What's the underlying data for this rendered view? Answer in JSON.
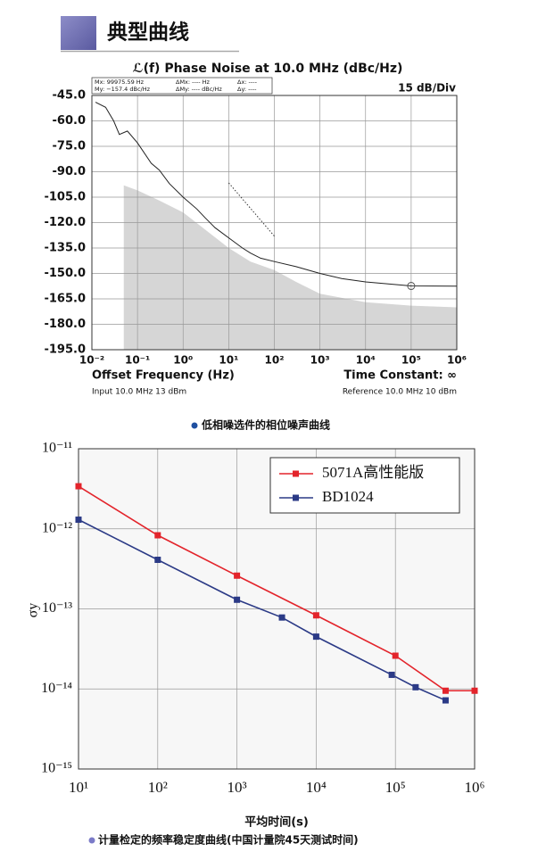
{
  "header": {
    "title": "典型曲线"
  },
  "chart_data": [
    {
      "type": "line",
      "title": "ℒ(f) Phase Noise at 10.0 MHz (dBc/Hz)",
      "annotations": [
        "Mx: 99975.59 Hz",
        "ΔMx: ---- Hz",
        "Δx: ----",
        "My: −157.4 dBc/Hz",
        "ΔMy: ---- dBc/Hz",
        "Δy: ----"
      ],
      "scale_note": "15 dB/Div",
      "x_label": "Offset Frequency (Hz)",
      "time_constant": "Time Constant: ∞",
      "input_note": "Input 10.0 MHz 13 dBm",
      "reference_note": "Reference 10.0 MHz 10 dBm",
      "caption": "低相噪选件的相位噪声曲线",
      "x_log": true,
      "grid": true,
      "xlim": [
        0.01,
        1000000
      ],
      "xticks": [
        {
          "value": 0.01,
          "label": "10⁻²"
        },
        {
          "value": 0.1,
          "label": "10⁻¹"
        },
        {
          "value": 1,
          "label": "10⁰"
        },
        {
          "value": 10,
          "label": "10¹"
        },
        {
          "value": 100,
          "label": "10²"
        },
        {
          "value": 1000,
          "label": "10³"
        },
        {
          "value": 10000,
          "label": "10⁴"
        },
        {
          "value": 100000,
          "label": "10⁵"
        },
        {
          "value": 1000000,
          "label": "10⁶"
        }
      ],
      "ylim": [
        -195,
        -45
      ],
      "yticks": [
        {
          "value": -45,
          "label": "-45.0"
        },
        {
          "value": -60,
          "label": "-60.0"
        },
        {
          "value": -75,
          "label": "-75.0"
        },
        {
          "value": -90,
          "label": "-90.0"
        },
        {
          "value": -105,
          "label": "-105.0"
        },
        {
          "value": -120,
          "label": "-120.0"
        },
        {
          "value": -135,
          "label": "-135.0"
        },
        {
          "value": -150,
          "label": "-150.0"
        },
        {
          "value": -165,
          "label": "-165.0"
        },
        {
          "value": -180,
          "label": "-180.0"
        },
        {
          "value": -195,
          "label": "-195.0"
        }
      ],
      "marker": {
        "x": 99975.59,
        "y": -157.4
      },
      "series": [
        {
          "style": "area",
          "color": "#d6d6d6",
          "x": [
            0.05,
            0.1,
            0.3,
            1,
            3,
            10,
            30,
            100,
            300,
            1000,
            10000,
            100000,
            1000000
          ],
          "values": [
            -98,
            -101,
            -107,
            -114,
            -124,
            -135,
            -143,
            -148,
            -155,
            -162,
            -167,
            -169,
            -170
          ]
        },
        {
          "style": "line",
          "color": "#222",
          "x": [
            0.012,
            0.02,
            0.03,
            0.04,
            0.06,
            0.1,
            0.2,
            0.3,
            0.5,
            1,
            2,
            3,
            5,
            10,
            20,
            30,
            50,
            100,
            300,
            1000,
            3000,
            10000,
            100000,
            1000000
          ],
          "values": [
            -49,
            -52,
            -60,
            -68,
            -66,
            -73,
            -85,
            -89,
            -97,
            -105,
            -112,
            -117,
            -123,
            -129,
            -135,
            -138,
            -141,
            -143,
            -146,
            -150,
            -153,
            -155,
            -157.4,
            -157.5
          ]
        },
        {
          "style": "dotted",
          "color": "#333",
          "x": [
            10,
            100
          ],
          "values": [
            -96.6,
            -128
          ]
        }
      ]
    },
    {
      "type": "line",
      "y_label": "σy",
      "x_label": "平均时间(s)",
      "caption": "计量检定的频率稳定度曲线(中国计量院45天测试时间)",
      "x_log": true,
      "y_log": true,
      "grid": true,
      "legend": "upper right",
      "xlim": [
        10,
        1000000
      ],
      "xticks": [
        {
          "value": 10,
          "label": "10¹"
        },
        {
          "value": 100,
          "label": "10²"
        },
        {
          "value": 1000,
          "label": "10³"
        },
        {
          "value": 10000,
          "label": "10⁴"
        },
        {
          "value": 100000,
          "label": "10⁵"
        },
        {
          "value": 1000000,
          "label": "10⁶"
        }
      ],
      "ylim": [
        1e-15,
        1e-11
      ],
      "yticks": [
        {
          "value": 1e-11,
          "label": "10⁻¹¹"
        },
        {
          "value": 1e-12,
          "label": "10⁻¹²"
        },
        {
          "value": 1e-13,
          "label": "10⁻¹³"
        },
        {
          "value": 1e-14,
          "label": "10⁻¹⁴"
        },
        {
          "value": 1e-15,
          "label": "10⁻¹⁵"
        }
      ],
      "series": [
        {
          "name": "5071A高性能版",
          "color": "#e3242b",
          "x": [
            10,
            100,
            1000,
            10000,
            100000,
            430000,
            1000000
          ],
          "values": [
            3.4e-12,
            8.3e-13,
            2.6e-13,
            8.3e-14,
            2.6e-14,
            9.5e-15,
            9.5e-15
          ]
        },
        {
          "name": "BD1024",
          "color": "#2b3a86",
          "x": [
            10,
            100,
            1000,
            3700,
            10000,
            90000,
            180000,
            430000
          ],
          "values": [
            1.3e-12,
            4.1e-13,
            1.3e-13,
            7.8e-14,
            4.5e-14,
            1.5e-14,
            1.05e-14,
            7.2e-15
          ]
        }
      ]
    }
  ]
}
